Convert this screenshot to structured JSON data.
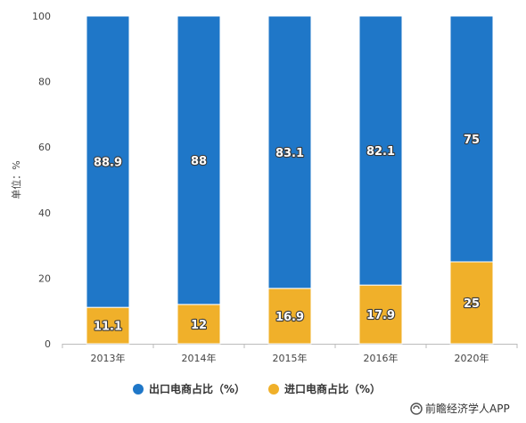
{
  "chart_data": {
    "type": "bar",
    "stacked": true,
    "categories": [
      "2013年",
      "2014年",
      "2015年",
      "2016年",
      "2020年"
    ],
    "series": [
      {
        "name": "进口电商占比（%）",
        "values": [
          11.1,
          12,
          16.9,
          17.9,
          25
        ],
        "color": "#f0b02a"
      },
      {
        "name": "出口电商占比（%）",
        "values": [
          88.9,
          88,
          83.1,
          82.1,
          75
        ],
        "color": "#1f77c8"
      }
    ],
    "data_labels": [
      [
        "11.1",
        "12",
        "16.9",
        "17.9",
        "25"
      ],
      [
        "88.9",
        "88",
        "83.1",
        "82.1",
        "75"
      ]
    ],
    "ylabel": "单位：%",
    "ylim": [
      0,
      100
    ],
    "yticks": [
      "0",
      "20",
      "40",
      "60",
      "80",
      "100"
    ],
    "ytick_values": [
      0,
      20,
      40,
      60,
      80,
      100
    ],
    "legend_position": "bottom",
    "legend_order": [
      1,
      0
    ],
    "grid": false
  },
  "source": "前瞻经济学人APP"
}
